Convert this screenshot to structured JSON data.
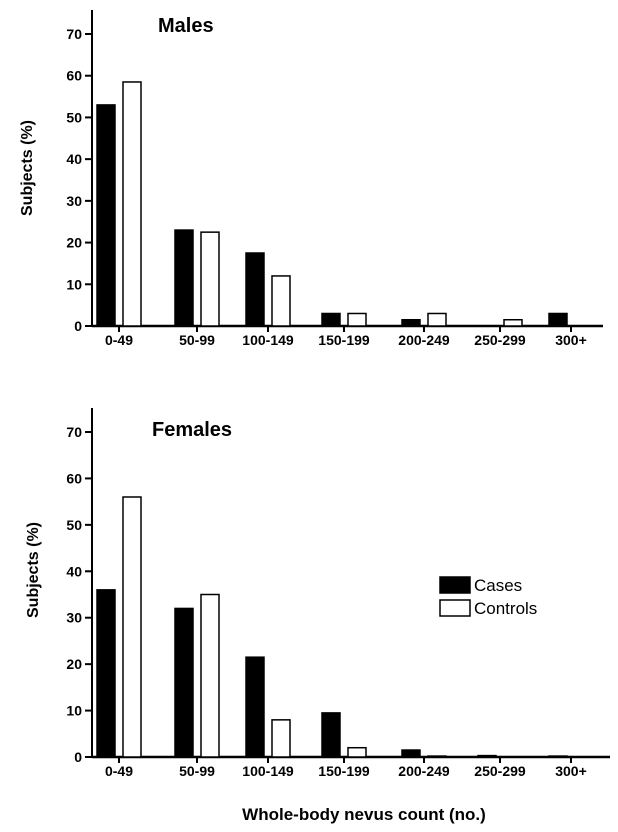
{
  "chart_data": [
    {
      "type": "bar",
      "title": "Males",
      "ylabel": "Subjects (%)",
      "xlabel": "",
      "ylim": [
        0,
        70
      ],
      "yticks": [
        0,
        10,
        20,
        30,
        40,
        50,
        60,
        70
      ],
      "categories": [
        "0-49",
        "50-99",
        "100-149",
        "150-199",
        "200-249",
        "250-299",
        "300+"
      ],
      "series": [
        {
          "name": "Cases",
          "color": "#000000",
          "values": [
            53,
            23,
            17.5,
            3,
            1.5,
            0,
            3
          ]
        },
        {
          "name": "Controls",
          "color": "#ffffff",
          "values": [
            58.5,
            22.5,
            12,
            3,
            3,
            1.5,
            0
          ]
        }
      ]
    },
    {
      "type": "bar",
      "title": "Females",
      "ylabel": "Subjects (%)",
      "xlabel": "Whole-body nevus count (no.)",
      "ylim": [
        0,
        70
      ],
      "yticks": [
        0,
        10,
        20,
        30,
        40,
        50,
        60,
        70
      ],
      "categories": [
        "0-49",
        "50-99",
        "100-149",
        "150-199",
        "200-249",
        "250-299",
        "300+"
      ],
      "legend_position": "right",
      "series": [
        {
          "name": "Cases",
          "color": "#000000",
          "values": [
            36,
            32,
            21.5,
            9.5,
            1.5,
            0.3,
            0.2
          ]
        },
        {
          "name": "Controls",
          "color": "#ffffff",
          "values": [
            56,
            35,
            8,
            2,
            0.2,
            0,
            0
          ]
        }
      ]
    }
  ]
}
